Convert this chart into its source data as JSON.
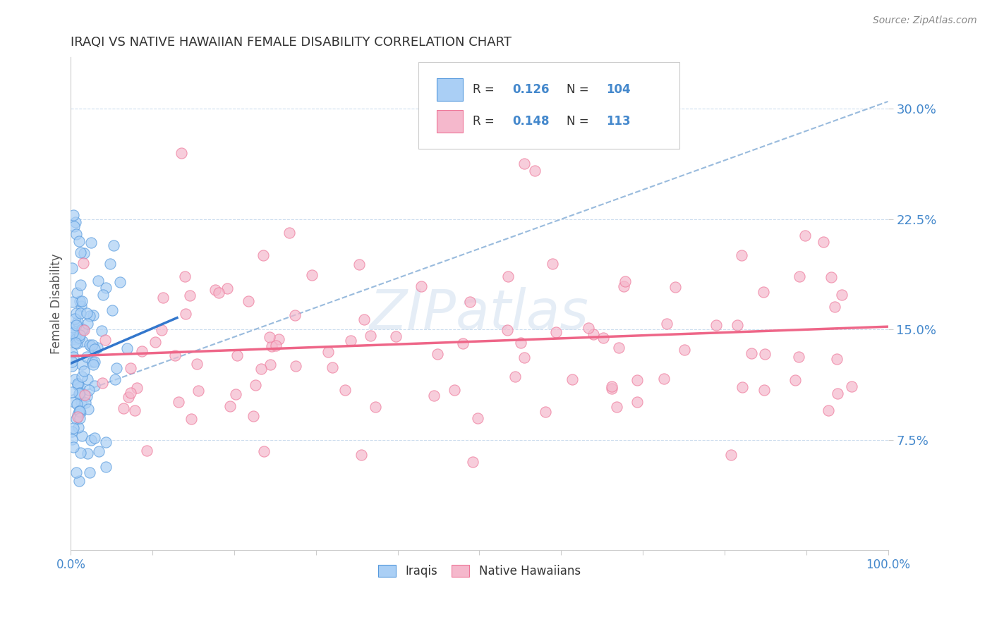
{
  "title": "IRAQI VS NATIVE HAWAIIAN FEMALE DISABILITY CORRELATION CHART",
  "source": "Source: ZipAtlas.com",
  "ylabel": "Female Disability",
  "ytick_labels": [
    "7.5%",
    "15.0%",
    "22.5%",
    "30.0%"
  ],
  "ytick_values": [
    0.075,
    0.15,
    0.225,
    0.3
  ],
  "xlim": [
    0.0,
    1.0
  ],
  "ylim": [
    0.0,
    0.335
  ],
  "iraqi_R": 0.126,
  "iraqi_N": 104,
  "hawaiian_R": 0.148,
  "hawaiian_N": 113,
  "iraqi_color": "#aacff5",
  "hawaiian_color": "#f5b8cc",
  "iraqi_edge_color": "#5599dd",
  "hawaiian_edge_color": "#ee7799",
  "iraqi_trend_color": "#3377cc",
  "hawaiian_trend_color": "#ee6688",
  "dashed_line_color": "#99bbdd",
  "tick_label_color": "#4488cc",
  "background_color": "#ffffff",
  "watermark": "ZIPatlas",
  "legend_R_N_color": "#4488cc",
  "legend_label_color": "#333333"
}
